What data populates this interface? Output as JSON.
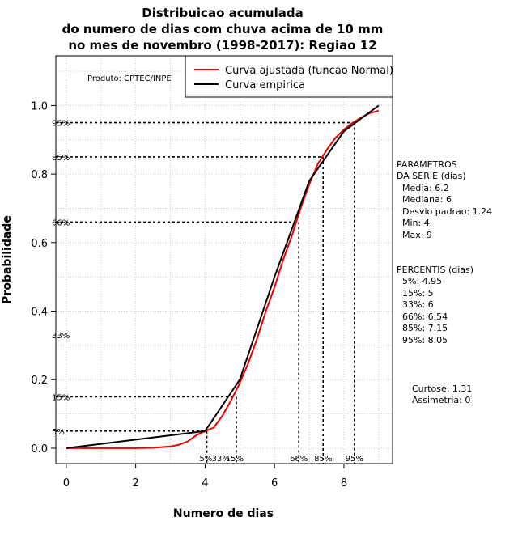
{
  "chart_data": {
    "type": "line",
    "title": [
      "Distribuicao acumulada",
      "do numero de dias com chuva acima de 10 mm",
      "no mes de novembro (1998-2017): Regiao 12"
    ],
    "xlabel": "Numero de dias",
    "ylabel": "Probabilidade",
    "xlim": [
      -0.3,
      9.4
    ],
    "ylim": [
      -0.045,
      1.145
    ],
    "x_ticks": [
      0,
      2,
      4,
      6,
      8
    ],
    "x_tick_labels": [
      "0",
      "2",
      "4",
      "6",
      "8"
    ],
    "y_ticks": [
      0.0,
      0.2,
      0.4,
      0.6,
      0.8,
      1.0
    ],
    "y_tick_labels": [
      "0.0",
      "0.2",
      "0.4",
      "0.6",
      "0.8",
      "1.0"
    ],
    "grid": true,
    "producer": "Produto: CPTEC/INPE",
    "legend": {
      "position": "top-right",
      "entries": [
        {
          "label": "Curva ajustada (funcao Normal)",
          "color": "#ee0000"
        },
        {
          "label": "Curva empirica",
          "color": "#000000"
        }
      ]
    },
    "series": [
      {
        "name": "Curva ajustada (funcao Normal)",
        "color": "#ee0000",
        "x": [
          0,
          0.5,
          1,
          1.5,
          2,
          2.5,
          3,
          3.25,
          3.5,
          3.75,
          4,
          4.25,
          4.5,
          4.75,
          5,
          5.25,
          5.5,
          5.75,
          6,
          6.25,
          6.5,
          6.75,
          7,
          7.25,
          7.5,
          7.75,
          8,
          8.25,
          8.5,
          8.75,
          9
        ],
        "y": [
          0,
          0,
          0,
          0,
          0,
          0.001,
          0.005,
          0.01,
          0.02,
          0.038,
          0.05,
          0.06,
          0.095,
          0.14,
          0.19,
          0.25,
          0.32,
          0.4,
          0.47,
          0.55,
          0.62,
          0.7,
          0.77,
          0.83,
          0.87,
          0.905,
          0.93,
          0.95,
          0.965,
          0.978,
          0.985
        ]
      },
      {
        "name": "Curva empirica",
        "color": "#000000",
        "x": [
          0,
          4,
          5,
          6,
          7,
          8,
          9
        ],
        "y": [
          0,
          0.05,
          0.2,
          0.5,
          0.78,
          0.925,
          1.0
        ]
      }
    ],
    "percentile_markers": [
      {
        "label": "5%",
        "x": 4.05,
        "y": 0.05
      },
      {
        "label": "15%",
        "x": 4.9,
        "y": 0.15
      },
      {
        "label": "66%",
        "x": 6.7,
        "y": 0.66
      },
      {
        "label": "85%",
        "x": 7.4,
        "y": 0.85
      },
      {
        "label": "95%",
        "x": 8.3,
        "y": 0.95
      }
    ],
    "bottom_percentile_labels": [
      {
        "label": "5%",
        "x": 4.02
      },
      {
        "label": "33%",
        "x": 4.45
      },
      {
        "label": "15%",
        "x": 4.85
      },
      {
        "label": "66%",
        "x": 6.7
      },
      {
        "label": "85%",
        "x": 7.4
      },
      {
        "label": "95%",
        "x": 8.3
      }
    ],
    "left_labels": [
      {
        "label": "95%",
        "y": 0.95
      },
      {
        "label": "85%",
        "y": 0.85
      },
      {
        "label": "66%",
        "y": 0.66
      },
      {
        "label": "33%",
        "y": 0.33
      },
      {
        "label": "15%",
        "y": 0.15
      },
      {
        "label": "5%",
        "y": 0.05
      }
    ],
    "parametros": [
      "PARAMETROS",
      "DA SERIE (dias)",
      "  Media: 6.2",
      "  Mediana: 6",
      "  Desvio padrao: 1.24",
      "  Min: 4",
      "  Max: 9"
    ],
    "percentis": [
      "PERCENTIS (dias)",
      "  5%: 4.95",
      "  15%: 5",
      "  33%: 6",
      "  66%: 6.54",
      "  85%: 7.15",
      "  95%: 8.05"
    ],
    "curtose": "Curtose: 1.31",
    "assimetria": "Assimetria: 0"
  }
}
